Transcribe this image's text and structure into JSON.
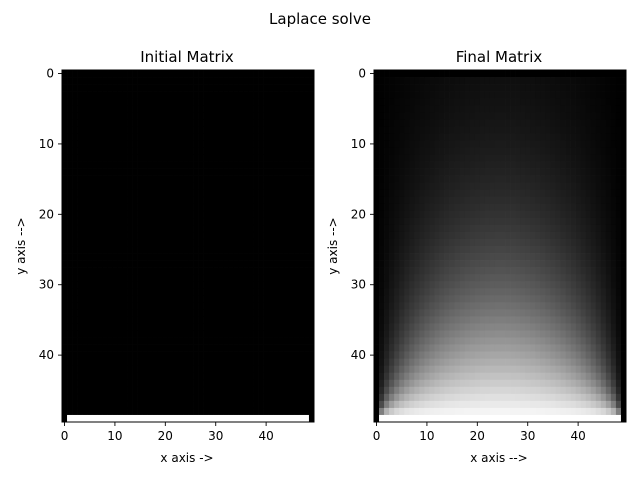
{
  "figure": {
    "title": "Laplace solve"
  },
  "chart_data": [
    {
      "type": "heatmap",
      "title": "Initial Matrix",
      "xlabel": "x axis ->",
      "ylabel": "y axis -->",
      "rows": 50,
      "cols": 50,
      "colormap": "gray",
      "xticks": [
        0,
        10,
        20,
        30,
        40
      ],
      "yticks": [
        0,
        10,
        20,
        30,
        40
      ],
      "xlim": [
        -0.5,
        49.5
      ],
      "ylim": [
        49.5,
        -0.5
      ],
      "boundary": {
        "top": 0,
        "left": 0,
        "right": 0,
        "bottom": 1,
        "bottom_corners": 0
      },
      "interior_value": 0
    },
    {
      "type": "heatmap",
      "title": "Final Matrix",
      "xlabel": "x axis -->",
      "ylabel": "y axis -->",
      "rows": 50,
      "cols": 50,
      "colormap": "gray",
      "xticks": [
        0,
        10,
        20,
        30,
        40
      ],
      "yticks": [
        0,
        10,
        20,
        30,
        40
      ],
      "xlim": [
        -0.5,
        49.5
      ],
      "ylim": [
        49.5,
        -0.5
      ],
      "boundary": {
        "top": 0,
        "left": 0,
        "right": 0,
        "bottom": 1,
        "bottom_corners": 0
      },
      "solution": "steady-state Laplace (harmonic) field, values 0 to 1"
    }
  ]
}
